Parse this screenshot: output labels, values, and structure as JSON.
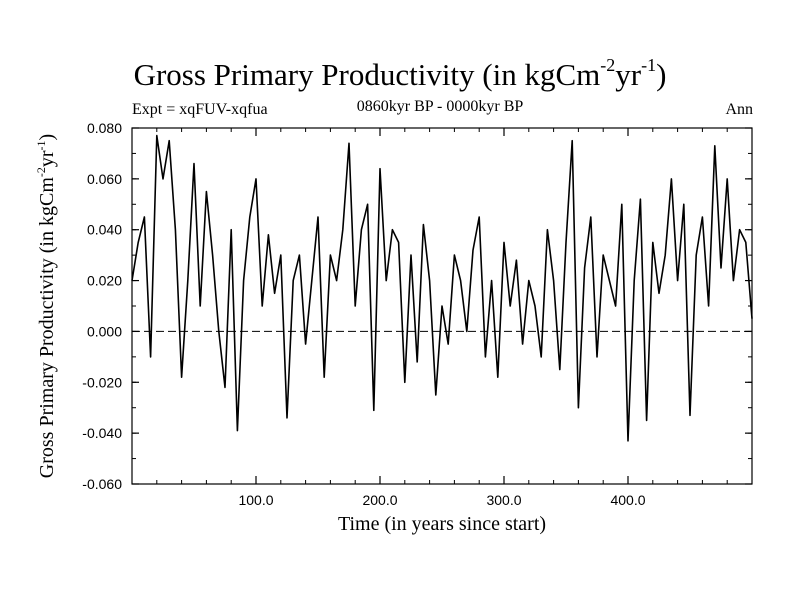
{
  "header": {
    "title_main": "Gross Primary Productivity (in kgCm",
    "title_sup1": "-2",
    "title_mid": "yr",
    "title_sup2": "-1",
    "title_end": ")",
    "expt": "Expt = xqFUV-xqfua",
    "period": "0860kyr BP - 0000kyr BP",
    "season": "Ann"
  },
  "chart_data": {
    "type": "line",
    "title": "Gross Primary Productivity (in kgCm-2yr-1)",
    "xlabel": "Time (in years since start)",
    "ylabel_main": "Gross Primary Productivity (in kgCm",
    "ylabel_sup1": "-2",
    "ylabel_mid": "yr",
    "ylabel_sup2": "-1",
    "ylabel_end": ")",
    "xlim": [
      0,
      500
    ],
    "ylim": [
      -0.06,
      0.08
    ],
    "x_ticks": [
      100,
      200,
      300,
      400
    ],
    "x_tick_labels": [
      "100.0",
      "200.0",
      "300.0",
      "400.0"
    ],
    "y_ticks": [
      -0.06,
      -0.04,
      -0.02,
      0.0,
      0.02,
      0.04,
      0.06,
      0.08
    ],
    "y_tick_labels": [
      "-0.060",
      "-0.040",
      "-0.020",
      "0.000",
      "0.020",
      "0.040",
      "0.060",
      "0.080"
    ],
    "zero_line": 0.0,
    "series": [
      {
        "name": "Ann",
        "x": [
          0,
          5,
          10,
          15,
          20,
          25,
          30,
          35,
          40,
          45,
          50,
          55,
          60,
          65,
          70,
          75,
          80,
          85,
          90,
          95,
          100,
          105,
          110,
          115,
          120,
          125,
          130,
          135,
          140,
          145,
          150,
          155,
          160,
          165,
          170,
          175,
          180,
          185,
          190,
          195,
          200,
          205,
          210,
          215,
          220,
          225,
          230,
          235,
          240,
          245,
          250,
          255,
          260,
          265,
          270,
          275,
          280,
          285,
          290,
          295,
          300,
          305,
          310,
          315,
          320,
          325,
          330,
          335,
          340,
          345,
          350,
          355,
          360,
          365,
          370,
          375,
          380,
          385,
          390,
          395,
          400,
          405,
          410,
          415,
          420,
          425,
          430,
          435,
          440,
          445,
          450,
          455,
          460,
          465,
          470,
          475,
          480,
          485,
          490,
          495,
          500
        ],
        "values": [
          0.02,
          0.035,
          0.045,
          -0.01,
          0.077,
          0.06,
          0.075,
          0.04,
          -0.018,
          0.02,
          0.066,
          0.01,
          0.055,
          0.03,
          0.0,
          -0.022,
          0.04,
          -0.039,
          0.02,
          0.045,
          0.06,
          0.01,
          0.038,
          0.015,
          0.03,
          -0.034,
          0.02,
          0.03,
          -0.005,
          0.02,
          0.045,
          -0.018,
          0.03,
          0.02,
          0.04,
          0.074,
          0.01,
          0.04,
          0.05,
          -0.031,
          0.064,
          0.02,
          0.04,
          0.035,
          -0.02,
          0.03,
          -0.012,
          0.042,
          0.02,
          -0.025,
          0.01,
          -0.005,
          0.03,
          0.02,
          0.0,
          0.032,
          0.045,
          -0.01,
          0.02,
          -0.018,
          0.035,
          0.01,
          0.028,
          -0.005,
          0.02,
          0.01,
          -0.01,
          0.04,
          0.02,
          -0.015,
          0.035,
          0.075,
          -0.03,
          0.025,
          0.045,
          -0.01,
          0.03,
          0.02,
          0.01,
          0.05,
          -0.043,
          0.02,
          0.052,
          -0.035,
          0.035,
          0.015,
          0.03,
          0.06,
          0.02,
          0.05,
          -0.033,
          0.03,
          0.045,
          0.01,
          0.073,
          0.025,
          0.06,
          0.02,
          0.04,
          0.035,
          0.005
        ]
      }
    ]
  }
}
